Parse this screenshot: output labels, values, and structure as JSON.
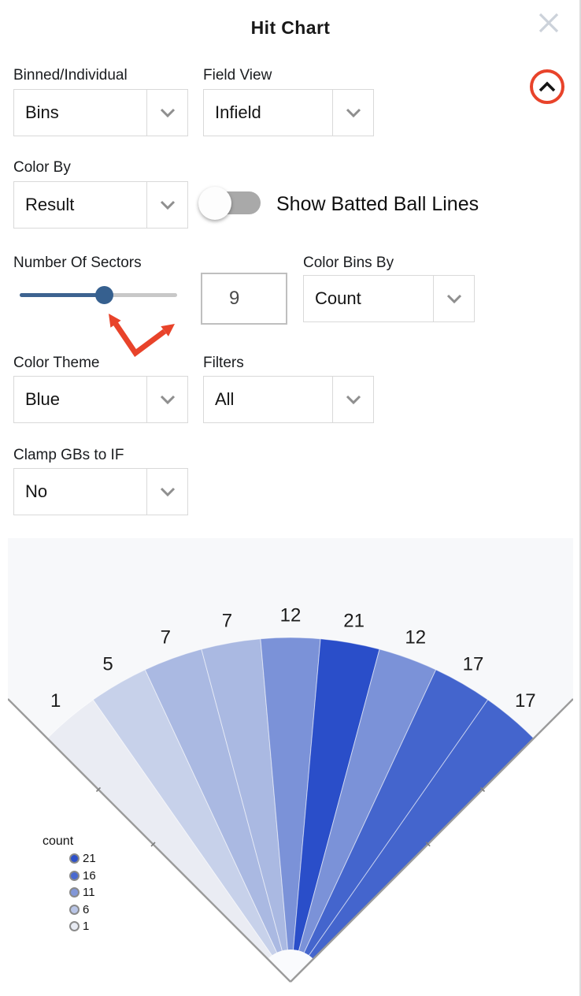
{
  "header": {
    "title": "Hit Chart"
  },
  "controls": {
    "binned_individual": {
      "label": "Binned/Individual",
      "value": "Bins"
    },
    "field_view": {
      "label": "Field View",
      "value": "Infield"
    },
    "color_by": {
      "label": "Color By",
      "value": "Result"
    },
    "show_batted_ball_lines": {
      "label": "Show Batted Ball Lines",
      "state": "off"
    },
    "number_of_sectors": {
      "label": "Number Of Sectors",
      "slider_value": 9,
      "input_value": "9"
    },
    "color_bins_by": {
      "label": "Color Bins By",
      "value": "Count"
    },
    "color_theme": {
      "label": "Color Theme",
      "value": "Blue"
    },
    "filters": {
      "label": "Filters",
      "value": "All"
    },
    "clamp_gbs_to_if": {
      "label": "Clamp GBs to IF",
      "value": "No"
    }
  },
  "annotations": {
    "collapse_button_circled": true,
    "arrows_point_at": "sector slider and sector count input",
    "color": "#e8432a"
  },
  "chart_data": {
    "type": "pie",
    "variant": "baseball-spray-fan, 90-degree span, 9 equal 10-degree sectors colored by count",
    "title": "",
    "bins_order": "left-to-right (third-base foul line to first-base foul line)",
    "values": [
      1,
      5,
      7,
      7,
      12,
      21,
      12,
      17,
      17
    ],
    "colors": [
      "#eaecf3",
      "#c7d1ea",
      "#aab9e2",
      "#aab9e2",
      "#7b92d8",
      "#2a4ec9",
      "#7b92d8",
      "#4465cd",
      "#4465cd"
    ],
    "sector_angle_deg": 10,
    "total_span_deg": 90,
    "legend": {
      "title": "count",
      "items": [
        {
          "value": 21,
          "color": "#2d50c9"
        },
        {
          "value": 16,
          "color": "#4a69cf"
        },
        {
          "value": 11,
          "color": "#8297d8"
        },
        {
          "value": 6,
          "color": "#b9c5e7"
        },
        {
          "value": 1,
          "color": "#e8ebf3"
        }
      ]
    },
    "field": {
      "background": "#f7f8fa",
      "foul_line_color": "#9b9b9b",
      "outside_color": "#ffffff"
    }
  }
}
